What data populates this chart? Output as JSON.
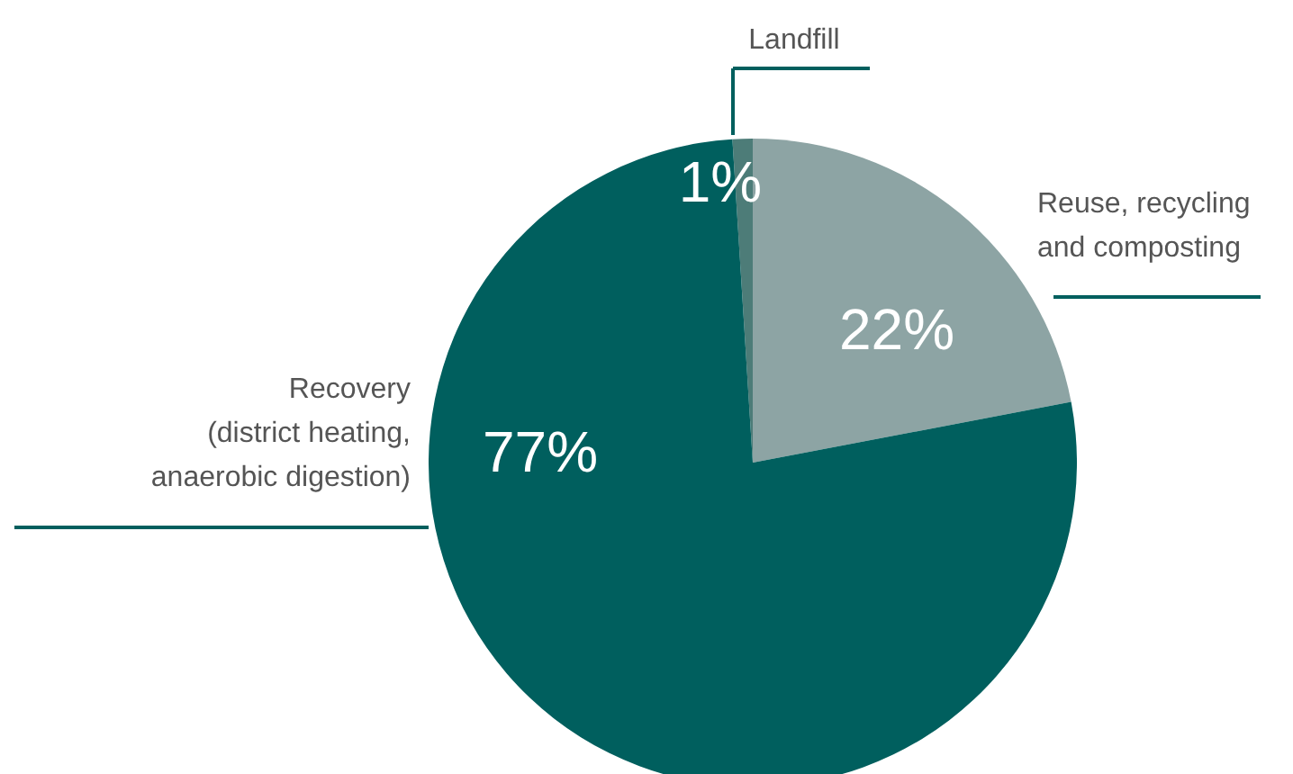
{
  "chart_data": {
    "type": "pie",
    "categories": [
      "Landfill",
      "Reuse, recycling and composting",
      "Recovery (district heating, anaerobic digestion)"
    ],
    "values": [
      1,
      22,
      77
    ],
    "value_labels": [
      "1%",
      "22%",
      "77%"
    ],
    "colors": [
      "#4d7c78",
      "#8da4a4",
      "#005f5e"
    ]
  }
}
